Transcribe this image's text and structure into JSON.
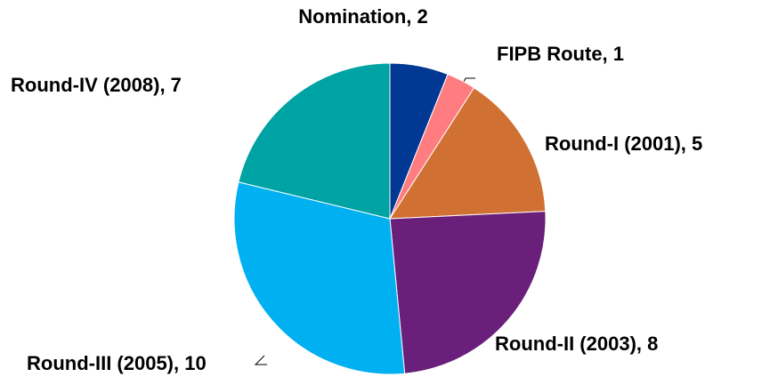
{
  "chart_data": {
    "type": "pie",
    "values": [
      2,
      1,
      5,
      8,
      10,
      7
    ],
    "value_labels": [
      "Nomination, 2",
      "FIPB Route, 1",
      "Round-I (2001), 5",
      "Round-II (2003), 8",
      "Round-III (2005), 10",
      "Round-IV (2008), 7"
    ],
    "colors": [
      "#003893",
      "#ff7c80",
      "#d07032",
      "#6a1f7a",
      "#00b0f0",
      "#00a3a3"
    ]
  }
}
